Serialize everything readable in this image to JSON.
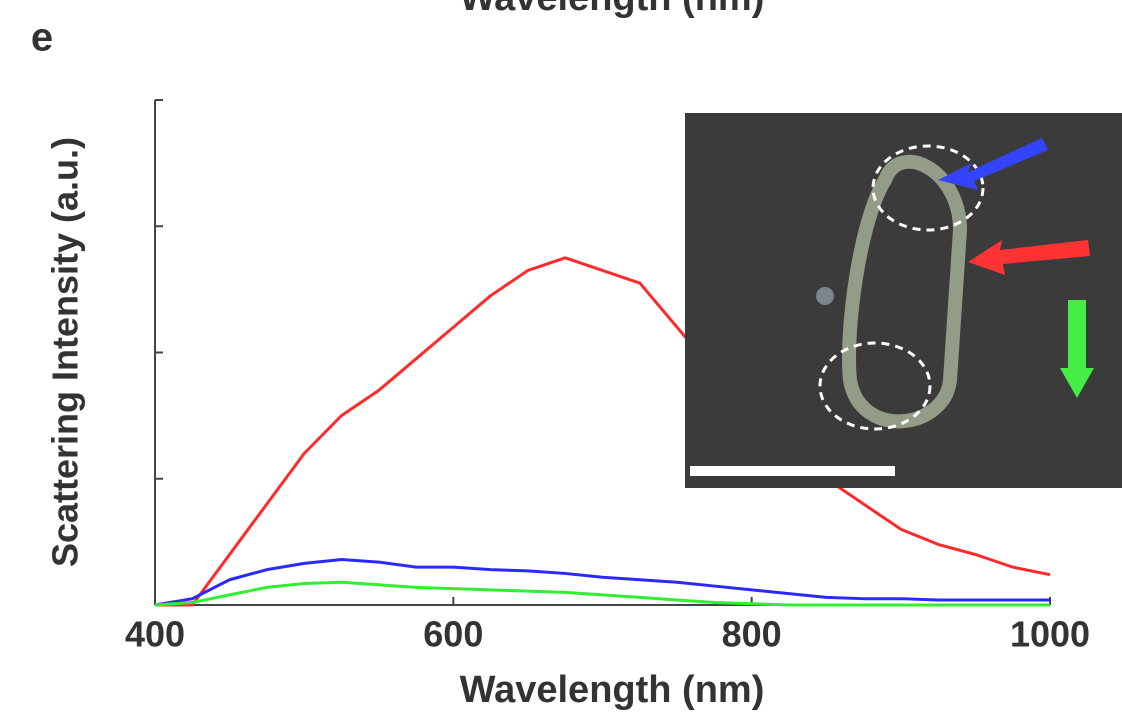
{
  "panel_label": "e",
  "cut_label": "Wavelength (nm)",
  "chart_data": {
    "type": "line",
    "x_label": "Wavelength (nm)",
    "y_label": "Scattering Intensity (a.u.)",
    "x": [
      400,
      425,
      450,
      475,
      500,
      525,
      550,
      575,
      600,
      625,
      650,
      675,
      700,
      725,
      750,
      775,
      800,
      825,
      850,
      875,
      900,
      925,
      950,
      975,
      1000
    ],
    "series": [
      {
        "color": "#ff2a2a",
        "values": [
          0,
          0,
          0.4,
          0.8,
          1.2,
          1.5,
          1.7,
          1.95,
          2.2,
          2.45,
          2.65,
          2.75,
          2.65,
          2.55,
          2.2,
          1.85,
          1.55,
          1.25,
          1.0,
          0.8,
          0.6,
          0.48,
          0.4,
          0.3,
          0.24
        ]
      },
      {
        "color": "#2a2aff",
        "values": [
          0,
          0.05,
          0.2,
          0.28,
          0.33,
          0.36,
          0.34,
          0.3,
          0.3,
          0.28,
          0.27,
          0.25,
          0.22,
          0.2,
          0.18,
          0.15,
          0.12,
          0.09,
          0.06,
          0.05,
          0.05,
          0.04,
          0.04,
          0.04,
          0.04
        ]
      },
      {
        "color": "#33ee33",
        "values": [
          0,
          0.02,
          0.08,
          0.14,
          0.17,
          0.18,
          0.16,
          0.14,
          0.13,
          0.12,
          0.11,
          0.1,
          0.08,
          0.06,
          0.04,
          0.02,
          0.01,
          0,
          0,
          0,
          0,
          0,
          0,
          0,
          0
        ]
      }
    ],
    "xlim": [
      400,
      1000
    ],
    "xticks": [
      400,
      600,
      800,
      1000
    ],
    "ylim": [
      0,
      4
    ],
    "yticks": [
      0,
      1,
      2,
      3,
      4
    ],
    "show_ytick_labels": false
  }
}
